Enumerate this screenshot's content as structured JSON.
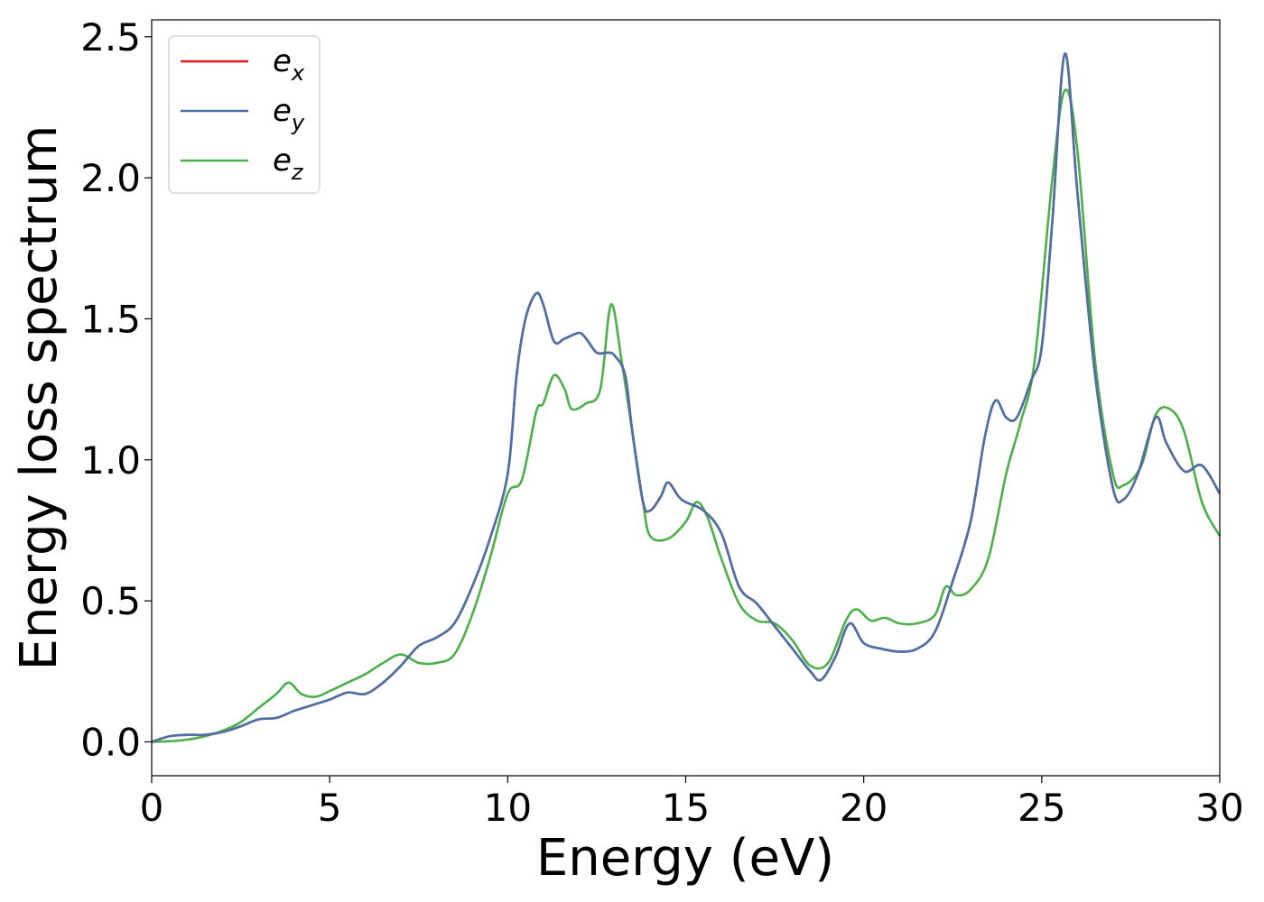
{
  "chart_data": {
    "type": "line",
    "title": "",
    "xlabel": "Energy (eV)",
    "ylabel": "Energy loss spectrum",
    "xlim": [
      0,
      30
    ],
    "ylim": [
      -0.12,
      2.56
    ],
    "xticks": [
      0,
      5,
      10,
      15,
      20,
      25,
      30
    ],
    "xtick_labels": [
      "0",
      "5",
      "10",
      "15",
      "20",
      "25",
      "30"
    ],
    "yticks": [
      0.0,
      0.5,
      1.0,
      1.5,
      2.0,
      2.5
    ],
    "ytick_labels": [
      "0.0",
      "0.5",
      "1.0",
      "1.5",
      "2.0",
      "2.5"
    ],
    "grid": false,
    "legend_position": "top-left",
    "series": [
      {
        "name": "e_x",
        "legend": {
          "base": "e",
          "sub": "x"
        },
        "color": "#e41a1c",
        "points": [
          [
            0,
            0
          ],
          [
            0.5,
            0.02
          ],
          [
            1,
            0.025
          ],
          [
            1.5,
            0.025
          ],
          [
            2,
            0.035
          ],
          [
            2.5,
            0.055
          ],
          [
            3,
            0.08
          ],
          [
            3.5,
            0.085
          ],
          [
            4,
            0.11
          ],
          [
            4.5,
            0.13
          ],
          [
            5,
            0.15
          ],
          [
            5.5,
            0.175
          ],
          [
            6,
            0.17
          ],
          [
            6.5,
            0.21
          ],
          [
            7,
            0.27
          ],
          [
            7.5,
            0.34
          ],
          [
            8,
            0.37
          ],
          [
            8.5,
            0.42
          ],
          [
            9,
            0.55
          ],
          [
            9.5,
            0.72
          ],
          [
            10,
            0.95
          ],
          [
            10.25,
            1.3
          ],
          [
            10.5,
            1.5
          ],
          [
            10.8,
            1.59
          ],
          [
            11,
            1.55
          ],
          [
            11.3,
            1.42
          ],
          [
            11.6,
            1.43
          ],
          [
            12,
            1.45
          ],
          [
            12.2,
            1.43
          ],
          [
            12.5,
            1.38
          ],
          [
            12.8,
            1.38
          ],
          [
            13,
            1.37
          ],
          [
            13.3,
            1.3
          ],
          [
            13.5,
            1.1
          ],
          [
            13.8,
            0.85
          ],
          [
            14,
            0.82
          ],
          [
            14.3,
            0.87
          ],
          [
            14.5,
            0.92
          ],
          [
            14.8,
            0.87
          ],
          [
            15,
            0.85
          ],
          [
            15.5,
            0.82
          ],
          [
            16,
            0.74
          ],
          [
            16.5,
            0.55
          ],
          [
            17,
            0.49
          ],
          [
            17.5,
            0.41
          ],
          [
            18,
            0.33
          ],
          [
            18.5,
            0.25
          ],
          [
            18.8,
            0.22
          ],
          [
            19.2,
            0.3
          ],
          [
            19.6,
            0.42
          ],
          [
            20,
            0.35
          ],
          [
            20.5,
            0.33
          ],
          [
            21,
            0.32
          ],
          [
            21.5,
            0.33
          ],
          [
            22,
            0.39
          ],
          [
            22.5,
            0.57
          ],
          [
            23,
            0.78
          ],
          [
            23.4,
            1.08
          ],
          [
            23.7,
            1.21
          ],
          [
            24,
            1.15
          ],
          [
            24.3,
            1.15
          ],
          [
            24.7,
            1.28
          ],
          [
            25,
            1.4
          ],
          [
            25.3,
            1.85
          ],
          [
            25.65,
            2.44
          ],
          [
            26,
            1.95
          ],
          [
            26.5,
            1.3
          ],
          [
            27,
            0.9
          ],
          [
            27.3,
            0.86
          ],
          [
            27.7,
            0.95
          ],
          [
            28.2,
            1.15
          ],
          [
            28.5,
            1.06
          ],
          [
            29,
            0.96
          ],
          [
            29.5,
            0.98
          ],
          [
            30,
            0.88
          ]
        ]
      },
      {
        "name": "e_y",
        "legend": {
          "base": "e",
          "sub": "y"
        },
        "color": "#4a72a6",
        "points": [
          [
            0,
            0
          ],
          [
            0.5,
            0.02
          ],
          [
            1,
            0.025
          ],
          [
            1.5,
            0.025
          ],
          [
            2,
            0.035
          ],
          [
            2.5,
            0.055
          ],
          [
            3,
            0.08
          ],
          [
            3.5,
            0.085
          ],
          [
            4,
            0.11
          ],
          [
            4.5,
            0.13
          ],
          [
            5,
            0.15
          ],
          [
            5.5,
            0.175
          ],
          [
            6,
            0.17
          ],
          [
            6.5,
            0.21
          ],
          [
            7,
            0.27
          ],
          [
            7.5,
            0.34
          ],
          [
            8,
            0.37
          ],
          [
            8.5,
            0.42
          ],
          [
            9,
            0.55
          ],
          [
            9.5,
            0.72
          ],
          [
            10,
            0.95
          ],
          [
            10.25,
            1.3
          ],
          [
            10.5,
            1.5
          ],
          [
            10.8,
            1.59
          ],
          [
            11,
            1.55
          ],
          [
            11.3,
            1.42
          ],
          [
            11.6,
            1.43
          ],
          [
            12,
            1.45
          ],
          [
            12.2,
            1.43
          ],
          [
            12.5,
            1.38
          ],
          [
            12.8,
            1.38
          ],
          [
            13,
            1.37
          ],
          [
            13.3,
            1.3
          ],
          [
            13.5,
            1.1
          ],
          [
            13.8,
            0.85
          ],
          [
            14,
            0.82
          ],
          [
            14.3,
            0.87
          ],
          [
            14.5,
            0.92
          ],
          [
            14.8,
            0.87
          ],
          [
            15,
            0.85
          ],
          [
            15.5,
            0.82
          ],
          [
            16,
            0.74
          ],
          [
            16.5,
            0.55
          ],
          [
            17,
            0.49
          ],
          [
            17.5,
            0.41
          ],
          [
            18,
            0.33
          ],
          [
            18.5,
            0.25
          ],
          [
            18.8,
            0.22
          ],
          [
            19.2,
            0.3
          ],
          [
            19.6,
            0.42
          ],
          [
            20,
            0.35
          ],
          [
            20.5,
            0.33
          ],
          [
            21,
            0.32
          ],
          [
            21.5,
            0.33
          ],
          [
            22,
            0.39
          ],
          [
            22.5,
            0.57
          ],
          [
            23,
            0.78
          ],
          [
            23.4,
            1.08
          ],
          [
            23.7,
            1.21
          ],
          [
            24,
            1.15
          ],
          [
            24.3,
            1.15
          ],
          [
            24.7,
            1.28
          ],
          [
            25,
            1.4
          ],
          [
            25.3,
            1.85
          ],
          [
            25.65,
            2.44
          ],
          [
            26,
            1.95
          ],
          [
            26.5,
            1.3
          ],
          [
            27,
            0.9
          ],
          [
            27.3,
            0.86
          ],
          [
            27.7,
            0.95
          ],
          [
            28.2,
            1.15
          ],
          [
            28.5,
            1.06
          ],
          [
            29,
            0.96
          ],
          [
            29.5,
            0.98
          ],
          [
            30,
            0.88
          ]
        ]
      },
      {
        "name": "e_z",
        "legend": {
          "base": "e",
          "sub": "z"
        },
        "color": "#4daf4a",
        "points": [
          [
            0,
            0
          ],
          [
            0.5,
            0.002
          ],
          [
            1,
            0.008
          ],
          [
            1.5,
            0.02
          ],
          [
            2,
            0.04
          ],
          [
            2.5,
            0.07
          ],
          [
            3,
            0.12
          ],
          [
            3.5,
            0.17
          ],
          [
            3.85,
            0.21
          ],
          [
            4.2,
            0.17
          ],
          [
            4.6,
            0.16
          ],
          [
            5,
            0.18
          ],
          [
            5.5,
            0.21
          ],
          [
            6,
            0.24
          ],
          [
            6.5,
            0.28
          ],
          [
            7,
            0.31
          ],
          [
            7.5,
            0.28
          ],
          [
            8,
            0.28
          ],
          [
            8.5,
            0.31
          ],
          [
            9,
            0.45
          ],
          [
            9.5,
            0.65
          ],
          [
            10,
            0.88
          ],
          [
            10.4,
            0.93
          ],
          [
            10.8,
            1.17
          ],
          [
            11,
            1.2
          ],
          [
            11.3,
            1.3
          ],
          [
            11.6,
            1.25
          ],
          [
            11.8,
            1.18
          ],
          [
            12.2,
            1.2
          ],
          [
            12.6,
            1.25
          ],
          [
            12.9,
            1.55
          ],
          [
            13.2,
            1.35
          ],
          [
            13.5,
            1.1
          ],
          [
            13.8,
            0.85
          ],
          [
            14,
            0.73
          ],
          [
            14.5,
            0.72
          ],
          [
            15,
            0.78
          ],
          [
            15.3,
            0.85
          ],
          [
            15.6,
            0.8
          ],
          [
            16,
            0.65
          ],
          [
            16.5,
            0.49
          ],
          [
            17,
            0.43
          ],
          [
            17.5,
            0.42
          ],
          [
            18,
            0.36
          ],
          [
            18.5,
            0.27
          ],
          [
            19,
            0.28
          ],
          [
            19.5,
            0.43
          ],
          [
            19.8,
            0.47
          ],
          [
            20.2,
            0.43
          ],
          [
            20.6,
            0.44
          ],
          [
            21,
            0.42
          ],
          [
            21.5,
            0.42
          ],
          [
            22,
            0.45
          ],
          [
            22.3,
            0.55
          ],
          [
            22.6,
            0.52
          ],
          [
            23,
            0.54
          ],
          [
            23.5,
            0.65
          ],
          [
            24,
            0.95
          ],
          [
            24.4,
            1.13
          ],
          [
            24.8,
            1.35
          ],
          [
            25.3,
            2.0
          ],
          [
            25.65,
            2.31
          ],
          [
            26,
            2.1
          ],
          [
            26.5,
            1.35
          ],
          [
            27,
            0.95
          ],
          [
            27.3,
            0.91
          ],
          [
            27.8,
            0.98
          ],
          [
            28.2,
            1.16
          ],
          [
            28.6,
            1.18
          ],
          [
            29,
            1.1
          ],
          [
            29.5,
            0.85
          ],
          [
            30,
            0.73
          ]
        ]
      }
    ]
  }
}
